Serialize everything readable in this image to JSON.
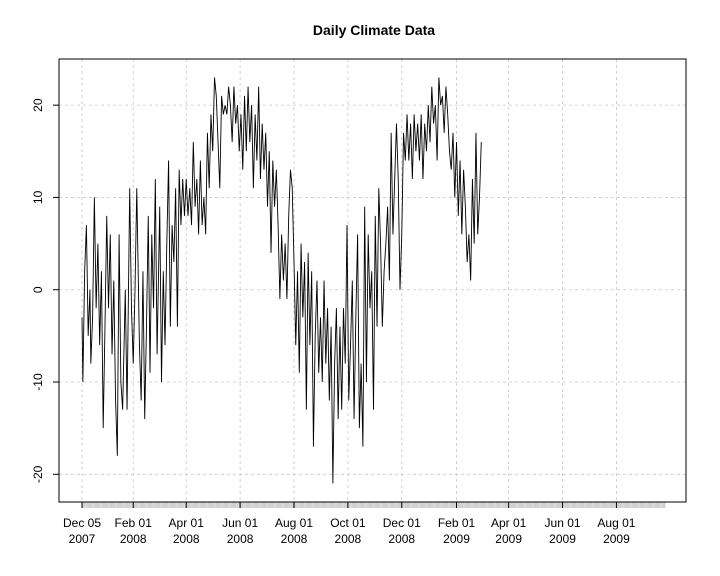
{
  "chart_data": {
    "type": "line",
    "title": "Daily Climate Data",
    "xlabel": "",
    "ylabel": "",
    "grid": true,
    "xlim": [
      "2007-12-05",
      "2009-09-25"
    ],
    "ylim": [
      -23,
      25
    ],
    "x_ticks": [
      {
        "date": "2007-12-05",
        "line1": "Dec 05",
        "line2": "2007"
      },
      {
        "date": "2008-02-01",
        "line1": "Feb 01",
        "line2": "2008"
      },
      {
        "date": "2008-04-01",
        "line1": "Apr 01",
        "line2": "2008"
      },
      {
        "date": "2008-06-01",
        "line1": "Jun 01",
        "line2": "2008"
      },
      {
        "date": "2008-08-01",
        "line1": "Aug 01",
        "line2": "2008"
      },
      {
        "date": "2008-10-01",
        "line1": "Oct 01",
        "line2": "2008"
      },
      {
        "date": "2008-12-01",
        "line1": "Dec 01",
        "line2": "2008"
      },
      {
        "date": "2009-02-01",
        "line1": "Feb 01",
        "line2": "2009"
      },
      {
        "date": "2009-04-01",
        "line1": "Apr 01",
        "line2": "2009"
      },
      {
        "date": "2009-06-01",
        "line1": "Jun 01",
        "line2": "2009"
      },
      {
        "date": "2009-08-01",
        "line1": "Aug 01",
        "line2": "2009"
      }
    ],
    "y_ticks": [
      -20,
      -10,
      0,
      10,
      20
    ],
    "series": [
      {
        "points": [
          [
            "2007-12-05",
            -3
          ],
          [
            "2007-12-06",
            -10
          ],
          [
            "2007-12-08",
            2
          ],
          [
            "2007-12-10",
            7
          ],
          [
            "2007-12-12",
            -5
          ],
          [
            "2007-12-14",
            0
          ],
          [
            "2007-12-15",
            -8
          ],
          [
            "2007-12-17",
            -3
          ],
          [
            "2007-12-19",
            10
          ],
          [
            "2007-12-21",
            -2
          ],
          [
            "2007-12-23",
            5
          ],
          [
            "2007-12-25",
            -6
          ],
          [
            "2007-12-27",
            2
          ],
          [
            "2007-12-29",
            -15
          ],
          [
            "2007-12-31",
            -4
          ],
          [
            "2008-01-02",
            8
          ],
          [
            "2008-01-04",
            -2
          ],
          [
            "2008-01-06",
            6
          ],
          [
            "2008-01-08",
            -7
          ],
          [
            "2008-01-10",
            1
          ],
          [
            "2008-01-12",
            -12
          ],
          [
            "2008-01-14",
            -18
          ],
          [
            "2008-01-16",
            6
          ],
          [
            "2008-01-18",
            -10
          ],
          [
            "2008-01-20",
            -13
          ],
          [
            "2008-01-23",
            0
          ],
          [
            "2008-01-25",
            -13
          ],
          [
            "2008-01-28",
            11
          ],
          [
            "2008-01-30",
            -2
          ],
          [
            "2008-02-01",
            -8
          ],
          [
            "2008-02-03",
            0
          ],
          [
            "2008-02-05",
            11
          ],
          [
            "2008-02-08",
            -6
          ],
          [
            "2008-02-10",
            -12
          ],
          [
            "2008-02-12",
            2
          ],
          [
            "2008-02-14",
            -14
          ],
          [
            "2008-02-16",
            -4
          ],
          [
            "2008-02-18",
            8
          ],
          [
            "2008-02-20",
            -9
          ],
          [
            "2008-02-22",
            6
          ],
          [
            "2008-02-24",
            -2
          ],
          [
            "2008-02-26",
            12
          ],
          [
            "2008-02-28",
            -7
          ],
          [
            "2008-03-02",
            9
          ],
          [
            "2008-03-04",
            -10
          ],
          [
            "2008-03-06",
            2
          ],
          [
            "2008-03-08",
            -6
          ],
          [
            "2008-03-10",
            5
          ],
          [
            "2008-03-12",
            14
          ],
          [
            "2008-03-14",
            -4
          ],
          [
            "2008-03-16",
            7
          ],
          [
            "2008-03-18",
            3
          ],
          [
            "2008-03-20",
            11
          ],
          [
            "2008-03-22",
            -4
          ],
          [
            "2008-03-24",
            13
          ],
          [
            "2008-03-26",
            7
          ],
          [
            "2008-03-28",
            12
          ],
          [
            "2008-03-30",
            8
          ],
          [
            "2008-04-01",
            12
          ],
          [
            "2008-04-03",
            8
          ],
          [
            "2008-04-05",
            11
          ],
          [
            "2008-04-07",
            7
          ],
          [
            "2008-04-09",
            16
          ],
          [
            "2008-04-11",
            9
          ],
          [
            "2008-04-13",
            12
          ],
          [
            "2008-04-15",
            6
          ],
          [
            "2008-04-17",
            14
          ],
          [
            "2008-04-19",
            7
          ],
          [
            "2008-04-21",
            10
          ],
          [
            "2008-04-23",
            6
          ],
          [
            "2008-04-25",
            17
          ],
          [
            "2008-04-27",
            11
          ],
          [
            "2008-04-29",
            19
          ],
          [
            "2008-05-01",
            15
          ],
          [
            "2008-05-03",
            23
          ],
          [
            "2008-05-05",
            21
          ],
          [
            "2008-05-07",
            16
          ],
          [
            "2008-05-09",
            11
          ],
          [
            "2008-05-11",
            21
          ],
          [
            "2008-05-13",
            19
          ],
          [
            "2008-05-15",
            20
          ],
          [
            "2008-05-17",
            19
          ],
          [
            "2008-05-19",
            22
          ],
          [
            "2008-05-21",
            20
          ],
          [
            "2008-05-23",
            16
          ],
          [
            "2008-05-25",
            22
          ],
          [
            "2008-05-27",
            18
          ],
          [
            "2008-05-29",
            20
          ],
          [
            "2008-05-31",
            15
          ],
          [
            "2008-06-02",
            19
          ],
          [
            "2008-06-04",
            13
          ],
          [
            "2008-06-06",
            21
          ],
          [
            "2008-06-08",
            15
          ],
          [
            "2008-06-10",
            22
          ],
          [
            "2008-06-12",
            16
          ],
          [
            "2008-06-14",
            20
          ],
          [
            "2008-06-16",
            11
          ],
          [
            "2008-06-18",
            19
          ],
          [
            "2008-06-20",
            14
          ],
          [
            "2008-06-22",
            22
          ],
          [
            "2008-06-24",
            12
          ],
          [
            "2008-06-26",
            18
          ],
          [
            "2008-06-28",
            13
          ],
          [
            "2008-06-30",
            17
          ],
          [
            "2008-07-02",
            9
          ],
          [
            "2008-07-04",
            15
          ],
          [
            "2008-07-06",
            4
          ],
          [
            "2008-07-08",
            14
          ],
          [
            "2008-07-10",
            9
          ],
          [
            "2008-07-12",
            13
          ],
          [
            "2008-07-14",
            7
          ],
          [
            "2008-07-16",
            -1
          ],
          [
            "2008-07-18",
            6
          ],
          [
            "2008-07-20",
            1
          ],
          [
            "2008-07-22",
            5
          ],
          [
            "2008-07-24",
            -1
          ],
          [
            "2008-07-26",
            8
          ],
          [
            "2008-07-28",
            13
          ],
          [
            "2008-07-30",
            11
          ],
          [
            "2008-08-01",
            3
          ],
          [
            "2008-08-03",
            -6
          ],
          [
            "2008-08-05",
            2
          ],
          [
            "2008-08-07",
            -9
          ],
          [
            "2008-08-09",
            5
          ],
          [
            "2008-08-11",
            -3
          ],
          [
            "2008-08-13",
            3
          ],
          [
            "2008-08-15",
            -13
          ],
          [
            "2008-08-17",
            4
          ],
          [
            "2008-08-19",
            -6
          ],
          [
            "2008-08-21",
            2
          ],
          [
            "2008-08-23",
            -17
          ],
          [
            "2008-08-25",
            -5
          ],
          [
            "2008-08-27",
            1
          ],
          [
            "2008-08-29",
            -9
          ],
          [
            "2008-08-31",
            -3
          ],
          [
            "2008-09-02",
            -10
          ],
          [
            "2008-09-04",
            1
          ],
          [
            "2008-09-06",
            -8
          ],
          [
            "2008-09-08",
            -2
          ],
          [
            "2008-09-10",
            -12
          ],
          [
            "2008-09-12",
            -4
          ],
          [
            "2008-09-14",
            -21
          ],
          [
            "2008-09-16",
            -8
          ],
          [
            "2008-09-18",
            -2
          ],
          [
            "2008-09-20",
            -14
          ],
          [
            "2008-09-22",
            -4
          ],
          [
            "2008-09-24",
            -13
          ],
          [
            "2008-09-26",
            -2
          ],
          [
            "2008-09-28",
            -8
          ],
          [
            "2008-09-30",
            7
          ],
          [
            "2008-10-02",
            -12
          ],
          [
            "2008-10-04",
            -6
          ],
          [
            "2008-10-06",
            1
          ],
          [
            "2008-10-08",
            -14
          ],
          [
            "2008-10-10",
            -3
          ],
          [
            "2008-10-12",
            6
          ],
          [
            "2008-10-14",
            -15
          ],
          [
            "2008-10-16",
            -8
          ],
          [
            "2008-10-18",
            -17
          ],
          [
            "2008-10-20",
            9
          ],
          [
            "2008-10-22",
            -10
          ],
          [
            "2008-10-24",
            6
          ],
          [
            "2008-10-26",
            -2
          ],
          [
            "2008-10-28",
            2
          ],
          [
            "2008-10-30",
            -13
          ],
          [
            "2008-11-01",
            8
          ],
          [
            "2008-11-03",
            -4
          ],
          [
            "2008-11-05",
            11
          ],
          [
            "2008-11-07",
            5
          ],
          [
            "2008-11-09",
            -4
          ],
          [
            "2008-11-11",
            2
          ],
          [
            "2008-11-13",
            5
          ],
          [
            "2008-11-15",
            9
          ],
          [
            "2008-11-17",
            1
          ],
          [
            "2008-11-19",
            17
          ],
          [
            "2008-11-21",
            6
          ],
          [
            "2008-11-23",
            12
          ],
          [
            "2008-11-25",
            18
          ],
          [
            "2008-11-27",
            12
          ],
          [
            "2008-11-29",
            0
          ],
          [
            "2008-12-01",
            6
          ],
          [
            "2008-12-03",
            17
          ],
          [
            "2008-12-05",
            14
          ],
          [
            "2008-12-07",
            19
          ],
          [
            "2008-12-09",
            14
          ],
          [
            "2008-12-11",
            18
          ],
          [
            "2008-12-13",
            12
          ],
          [
            "2008-12-15",
            19
          ],
          [
            "2008-12-17",
            15
          ],
          [
            "2008-12-19",
            18
          ],
          [
            "2008-12-21",
            14
          ],
          [
            "2008-12-23",
            19
          ],
          [
            "2008-12-25",
            12
          ],
          [
            "2008-12-27",
            18
          ],
          [
            "2008-12-29",
            15
          ],
          [
            "2008-12-31",
            20
          ],
          [
            "2009-01-02",
            16
          ],
          [
            "2009-01-04",
            22
          ],
          [
            "2009-01-06",
            18
          ],
          [
            "2009-01-08",
            20
          ],
          [
            "2009-01-10",
            14
          ],
          [
            "2009-01-12",
            23
          ],
          [
            "2009-01-14",
            20
          ],
          [
            "2009-01-16",
            21
          ],
          [
            "2009-01-18",
            17
          ],
          [
            "2009-01-20",
            22
          ],
          [
            "2009-01-22",
            19
          ],
          [
            "2009-01-24",
            15
          ],
          [
            "2009-01-26",
            13
          ],
          [
            "2009-01-28",
            17
          ],
          [
            "2009-01-30",
            10
          ],
          [
            "2009-02-01",
            16
          ],
          [
            "2009-02-03",
            8
          ],
          [
            "2009-02-05",
            14
          ],
          [
            "2009-02-07",
            6
          ],
          [
            "2009-02-09",
            13
          ],
          [
            "2009-02-11",
            9
          ],
          [
            "2009-02-13",
            3
          ],
          [
            "2009-02-15",
            6
          ],
          [
            "2009-02-17",
            1
          ],
          [
            "2009-02-19",
            12
          ],
          [
            "2009-02-21",
            5
          ],
          [
            "2009-02-23",
            17
          ],
          [
            "2009-02-25",
            6
          ],
          [
            "2009-02-27",
            10
          ],
          [
            "2009-03-01",
            16
          ]
        ]
      }
    ]
  }
}
